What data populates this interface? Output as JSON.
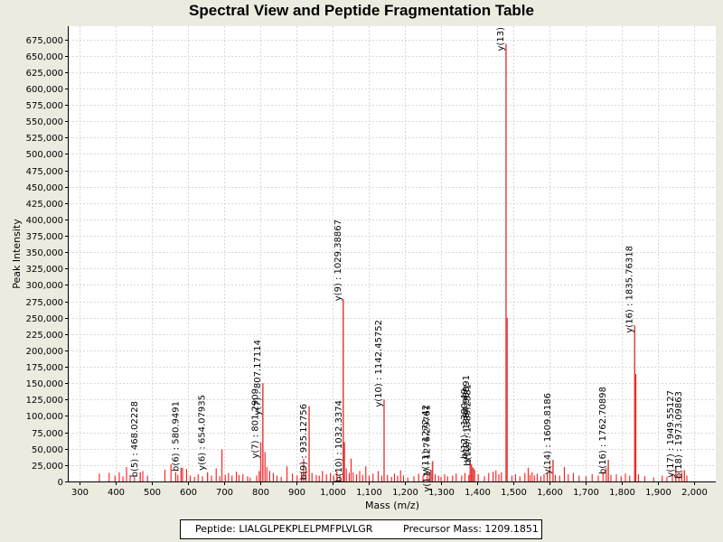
{
  "chart_data": {
    "type": "bar",
    "title": "Spectral View and Peptide Fragmentation Table",
    "xlabel": "Mass (m/z)",
    "ylabel": "Peak Intensity",
    "xlim": [
      270,
      2060
    ],
    "ylim": [
      0,
      695000
    ],
    "grid": true,
    "x_ticks": [
      300,
      400,
      500,
      600,
      700,
      800,
      900,
      1000,
      1100,
      1200,
      1300,
      1400,
      1500,
      1600,
      1700,
      1800,
      1900,
      2000
    ],
    "x_tick_labels": [
      "300",
      "400",
      "500",
      "600",
      "700",
      "800",
      "900",
      "1,000",
      "1,100",
      "1,200",
      "1,300",
      "1,400",
      "1,500",
      "1,600",
      "1,700",
      "1,800",
      "1,900",
      "2,000"
    ],
    "y_ticks": [
      0,
      25000,
      50000,
      75000,
      100000,
      125000,
      150000,
      175000,
      200000,
      225000,
      250000,
      275000,
      300000,
      325000,
      350000,
      375000,
      400000,
      425000,
      450000,
      475000,
      500000,
      525000,
      550000,
      575000,
      600000,
      625000,
      650000,
      675000
    ],
    "y_tick_labels": [
      "0",
      "25,000",
      "50,000",
      "75,000",
      "100,000",
      "125,000",
      "150,000",
      "175,000",
      "200,000",
      "225,000",
      "250,000",
      "275,000",
      "300,000",
      "325,000",
      "350,000",
      "375,000",
      "400,000",
      "425,000",
      "450,000",
      "475,000",
      "500,000",
      "525,000",
      "550,000",
      "575,000",
      "600,000",
      "625,000",
      "650,000",
      "675,000"
    ],
    "peaks": [
      [
        355,
        12000
      ],
      [
        382,
        13000
      ],
      [
        398,
        9000
      ],
      [
        410,
        14000
      ],
      [
        420,
        8000
      ],
      [
        430,
        22000
      ],
      [
        440,
        10000
      ],
      [
        452,
        7000
      ],
      [
        475,
        16000
      ],
      [
        488,
        9000
      ],
      [
        536,
        18000
      ],
      [
        553,
        26000
      ],
      [
        566,
        14000
      ],
      [
        572,
        10000
      ],
      [
        585,
        21000
      ],
      [
        596,
        19000
      ],
      [
        606,
        9000
      ],
      [
        618,
        7000
      ],
      [
        628,
        11000
      ],
      [
        640,
        8000
      ],
      [
        665,
        9000
      ],
      [
        678,
        20000
      ],
      [
        688,
        8000
      ],
      [
        694,
        49000
      ],
      [
        703,
        10000
      ],
      [
        712,
        13000
      ],
      [
        722,
        9000
      ],
      [
        734,
        15000
      ],
      [
        741,
        10000
      ],
      [
        752,
        11000
      ],
      [
        765,
        8000
      ],
      [
        772,
        6000
      ],
      [
        790,
        9000
      ],
      [
        797,
        16000
      ],
      [
        801.2,
        60000
      ],
      [
        807.2,
        150000
      ],
      [
        813,
        45000
      ],
      [
        818,
        22000
      ],
      [
        826,
        16000
      ],
      [
        836,
        13000
      ],
      [
        846,
        9000
      ],
      [
        858,
        7000
      ],
      [
        874,
        23000
      ],
      [
        889,
        12000
      ],
      [
        902,
        9000
      ],
      [
        914,
        14000
      ],
      [
        920,
        35000
      ],
      [
        926,
        22000
      ],
      [
        935.1,
        115000
      ],
      [
        943,
        13000
      ],
      [
        955,
        10000
      ],
      [
        963,
        9000
      ],
      [
        972,
        16000
      ],
      [
        983,
        11000
      ],
      [
        994,
        13000
      ],
      [
        1003,
        9000
      ],
      [
        1012,
        16000
      ],
      [
        1020,
        9000
      ],
      [
        1029.4,
        278000
      ],
      [
        1033,
        60000
      ],
      [
        1038,
        20000
      ],
      [
        1046,
        13000
      ],
      [
        1051,
        35000
      ],
      [
        1057,
        14000
      ],
      [
        1066,
        11000
      ],
      [
        1075,
        16000
      ],
      [
        1083,
        10000
      ],
      [
        1092,
        23000
      ],
      [
        1101,
        9000
      ],
      [
        1112,
        12000
      ],
      [
        1126,
        16000
      ],
      [
        1136,
        9000
      ],
      [
        1142.5,
        125000
      ],
      [
        1152,
        10000
      ],
      [
        1163,
        7000
      ],
      [
        1171,
        12000
      ],
      [
        1180,
        9000
      ],
      [
        1188,
        17000
      ],
      [
        1196,
        9000
      ],
      [
        1208,
        6000
      ],
      [
        1225,
        8000
      ],
      [
        1238,
        12000
      ],
      [
        1250,
        9000
      ],
      [
        1262,
        14000
      ],
      [
        1268,
        10000
      ],
      [
        1272,
        17000
      ],
      [
        1277,
        31000
      ],
      [
        1284,
        11000
      ],
      [
        1293,
        9000
      ],
      [
        1300,
        7000
      ],
      [
        1310,
        11000
      ],
      [
        1318,
        8000
      ],
      [
        1332,
        9000
      ],
      [
        1342,
        12000
      ],
      [
        1357,
        9000
      ],
      [
        1366,
        13000
      ],
      [
        1377,
        10000
      ],
      [
        1380,
        32000
      ],
      [
        1384,
        26000
      ],
      [
        1388,
        21000
      ],
      [
        1393,
        18000
      ],
      [
        1403,
        11000
      ],
      [
        1420,
        8000
      ],
      [
        1432,
        13000
      ],
      [
        1444,
        15000
      ],
      [
        1452,
        17000
      ],
      [
        1460,
        11000
      ],
      [
        1467,
        14000
      ],
      [
        1479.9,
        668000
      ],
      [
        1483,
        250000
      ],
      [
        1496,
        9000
      ],
      [
        1506,
        11000
      ],
      [
        1518,
        8000
      ],
      [
        1532,
        13000
      ],
      [
        1541,
        21000
      ],
      [
        1546,
        10000
      ],
      [
        1552,
        14000
      ],
      [
        1558,
        9000
      ],
      [
        1566,
        12000
      ],
      [
        1576,
        8000
      ],
      [
        1585,
        11000
      ],
      [
        1594,
        13000
      ],
      [
        1601,
        24000
      ],
      [
        1609.8,
        33000
      ],
      [
        1616,
        10000
      ],
      [
        1628,
        9000
      ],
      [
        1641,
        22000
      ],
      [
        1652,
        11000
      ],
      [
        1666,
        13000
      ],
      [
        1682,
        9000
      ],
      [
        1701,
        8000
      ],
      [
        1718,
        11000
      ],
      [
        1735,
        9000
      ],
      [
        1748,
        14000
      ],
      [
        1757,
        21000
      ],
      [
        1762.7,
        33000
      ],
      [
        1770,
        10000
      ],
      [
        1785,
        11000
      ],
      [
        1798,
        8000
      ],
      [
        1810,
        12000
      ],
      [
        1822,
        9000
      ],
      [
        1835.8,
        238000
      ],
      [
        1839,
        164000
      ],
      [
        1846,
        11000
      ],
      [
        1864,
        8000
      ],
      [
        1888,
        6000
      ],
      [
        1912,
        9000
      ],
      [
        1925,
        7000
      ],
      [
        1940,
        12000
      ],
      [
        1949.6,
        22000
      ],
      [
        1958,
        10000
      ],
      [
        1966,
        14000
      ],
      [
        1973.1,
        17000
      ],
      [
        1980,
        9000
      ]
    ],
    "annotations": [
      {
        "mz": 468.02228,
        "intensity": 14000,
        "label": "b(5) : 468.02228",
        "label_top": 444
      },
      {
        "mz": 580.9491,
        "intensity": 21000,
        "label": "b(6) : 580.9491",
        "label_top": 444
      },
      {
        "mz": 654.07935,
        "intensity": 14000,
        "label": "y(6) : 654.07935",
        "label_top": 437
      },
      {
        "mz": 801.2909,
        "intensity": 60000,
        "label": "y(7) : 801.2909",
        "label_top": 430
      },
      {
        "mz": 807.17114,
        "intensity": 150000,
        "label": "y(7) : 807.17114",
        "label_top": 376
      },
      {
        "mz": 935.12756,
        "intensity": 115000,
        "label": "b(9) : 935.12756",
        "label_top": 447
      },
      {
        "mz": 1029.38867,
        "intensity": 278000,
        "label": "y(9) : 1029.38867",
        "label_top": 243
      },
      {
        "mz": 1032.3374,
        "intensity": 60000,
        "label": "b(10) : 1032.3374",
        "label_top": 443
      },
      {
        "mz": 1142.45752,
        "intensity": 125000,
        "label": "y(10) : 1142.45752",
        "label_top": 354
      },
      {
        "mz": 1272.42,
        "intensity": 17000,
        "label": "y(11) : 1272.42",
        "label_top": 448
      },
      {
        "mz": 1276.29761,
        "intensity": 31000,
        "label": "y(11) : 1276.29761",
        "label_top": 448
      },
      {
        "mz": 1380.49,
        "intensity": 32000,
        "label": "b(12) : 1380.49",
        "label_top": 430
      },
      {
        "mz": 1384.50891,
        "intensity": 26000,
        "label": "y(12) : 1384.50891",
        "label_top": 415
      },
      {
        "mz": 1389.2581,
        "intensity": 21000,
        "label": "b(12) : 1389.2581",
        "label_top": 425
      },
      {
        "mz": 1479.9,
        "intensity": 668000,
        "label": "y(13)",
        "label_top": 30
      },
      {
        "mz": 1609.8186,
        "intensity": 33000,
        "label": "y(14) : 1609.8186",
        "label_top": 435
      },
      {
        "mz": 1762.70898,
        "intensity": 33000,
        "label": "b(16) : 1762.70898",
        "label_top": 428
      },
      {
        "mz": 1835.76318,
        "intensity": 238000,
        "label": "y(16) : 1835.76318",
        "label_top": 272
      },
      {
        "mz": 1949.55127,
        "intensity": 22000,
        "label": "y(17) : 1949.55127",
        "label_top": 432
      },
      {
        "mz": 1973.09863,
        "intensity": 17000,
        "label": "b(18) : 1973.09863",
        "label_top": 433
      }
    ],
    "colors": {
      "peak": "#ff0000",
      "annotated_peak": "#e23c3c",
      "grid": "#d8d8d8",
      "axis": "#000000",
      "plot_bg": "#ffffff",
      "page_bg": "#ecebe0"
    }
  },
  "footer": {
    "peptide_label": "Peptide: LIALGLPEKPLELPMFPLVLGR",
    "precursor_label": "Precursor Mass: 1209.1851"
  }
}
